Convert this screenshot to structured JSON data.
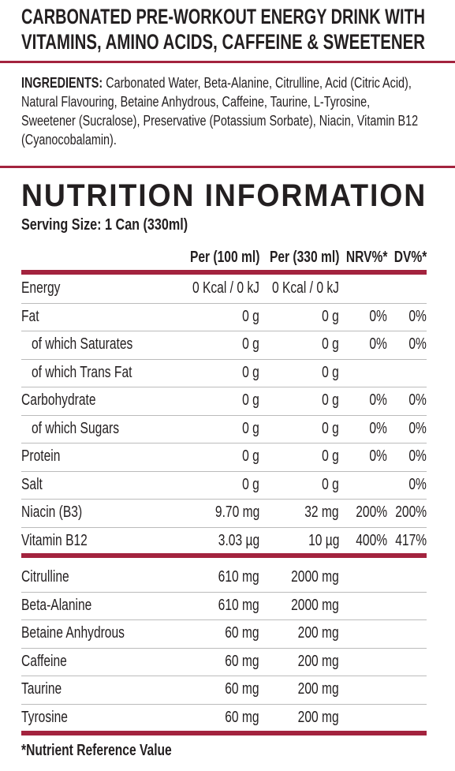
{
  "header": {
    "title_lines": [
      "CARBONATED PRE-WORKOUT ENERGY DRINK WITH",
      "VITAMINS, AMINO ACIDS, CAFFEINE & SWEETENER"
    ]
  },
  "ingredients": {
    "label": "INGREDIENTS:",
    "text": "Carbonated Water, Beta-Alanine, Citrulline, Acid (Citric Acid), Natural Flavouring, Betaine Anhydrous, Caffeine, Taurine, L-Tyrosine, Sweetener (Sucralose), Preservative (Potassium Sorbate), Niacin, Vitamin B12 (Cyanocobalamin)."
  },
  "nutrition": {
    "title": "NUTRITION INFORMATION",
    "serving_size": "Serving Size: 1 Can (330ml)",
    "columns": {
      "per100": "Per (100 ml)",
      "per330": "Per (330 ml)",
      "nrv": "NRV%*",
      "dv": "DV%*"
    },
    "rows": [
      {
        "label": "Energy",
        "per100": "0 Kcal / 0 kJ",
        "per330": "0 Kcal / 0 kJ"
      },
      {
        "label": "Fat",
        "per100": "0 g",
        "per330": "0 g",
        "nrv": "0%",
        "dv": "0%"
      },
      {
        "label": "of which Saturates",
        "indent": true,
        "per100": "0 g",
        "per330": "0 g",
        "nrv": "0%",
        "dv": "0%"
      },
      {
        "label": "of which Trans Fat",
        "indent": true,
        "per100": "0 g",
        "per330": "0 g"
      },
      {
        "label": "Carbohydrate",
        "per100": "0 g",
        "per330": "0 g",
        "nrv": "0%",
        "dv": "0%"
      },
      {
        "label": "of which Sugars",
        "indent": true,
        "per100": "0 g",
        "per330": "0 g",
        "nrv": "0%",
        "dv": "0%"
      },
      {
        "label": "Protein",
        "per100": "0 g",
        "per330": "0 g",
        "nrv": "0%",
        "dv": "0%"
      },
      {
        "label": "Salt",
        "per100": "0 g",
        "per330": "0 g",
        "dv": "0%"
      },
      {
        "label": "Niacin (B3)",
        "per100": "9.70 mg",
        "per330": "32 mg",
        "nrv": "200%",
        "dv": "200%"
      },
      {
        "label": "Vitamin B12",
        "per100": "3.03 µg",
        "per330": "10 µg",
        "nrv": "400%",
        "dv": "417%"
      }
    ],
    "actives": [
      {
        "label": "Citrulline",
        "per100": "610 mg",
        "per330": "2000 mg"
      },
      {
        "label": "Beta-Alanine",
        "per100": "610 mg",
        "per330": "2000 mg"
      },
      {
        "label": "Betaine Anhydrous",
        "per100": "60 mg",
        "per330": "200 mg"
      },
      {
        "label": "Caffeine",
        "per100": "60 mg",
        "per330": "200 mg"
      },
      {
        "label": "Taurine",
        "per100": "60 mg",
        "per330": "200 mg"
      },
      {
        "label": "Tyrosine",
        "per100": "60 mg",
        "per330": "200 mg"
      }
    ],
    "footnote": "*Nutrient Reference Value"
  }
}
